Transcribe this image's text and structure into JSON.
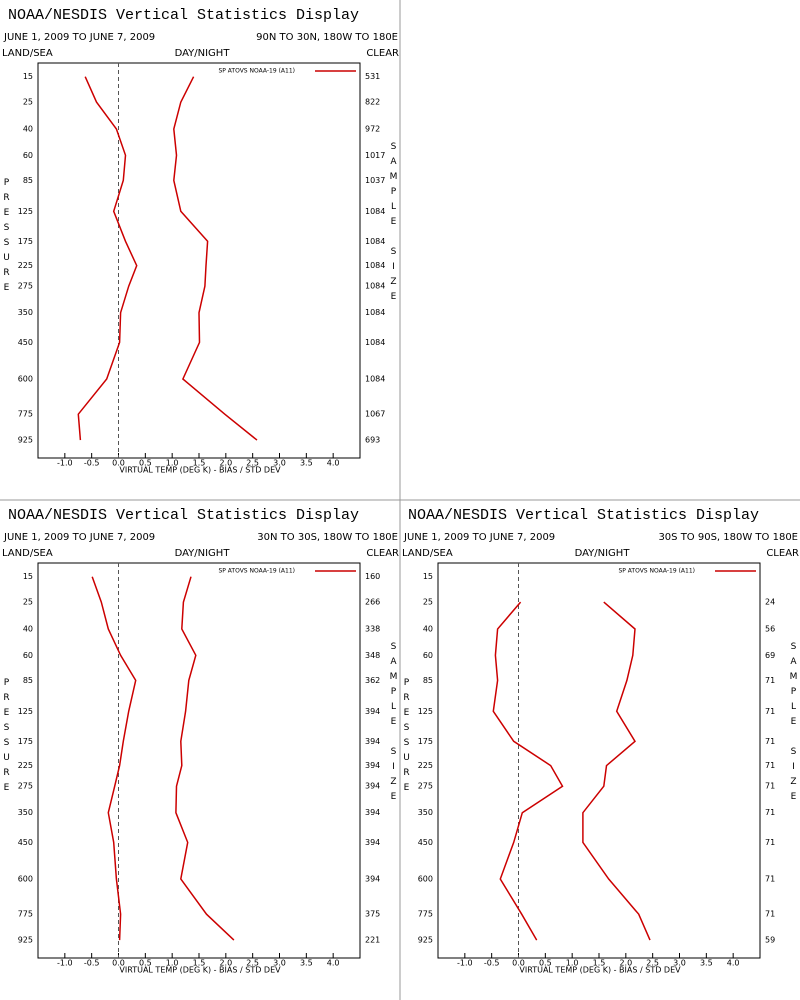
{
  "chart_data": [
    {
      "type": "line",
      "title": "NOAA/NESDIS Vertical Statistics Display",
      "date_range": "JUNE 1, 2009 TO JUNE 7, 2009",
      "region": "90N TO 30N, 180W TO 180E",
      "land_sea": "LAND/SEA",
      "day_night": "DAY/NIGHT",
      "cloud": "CLEAR",
      "ylabel": "PRESSURE",
      "y2label": "SAMPLE SIZE",
      "xlabel": "VIRTUAL TEMP (DEG K) - BIAS / STD DEV",
      "legend": "SP ATOVS NOAA-19 (A11)",
      "xlim": [
        -1.5,
        4.5
      ],
      "xticks": [
        {
          "value": -1,
          "label": "-1.0"
        },
        {
          "value": -0.5,
          "label": "-0.5"
        },
        {
          "value": 0,
          "label": "0.0"
        },
        {
          "value": 0.5,
          "label": "0.5"
        },
        {
          "value": 1,
          "label": "1.0"
        },
        {
          "value": 1.5,
          "label": "1.5"
        },
        {
          "value": 2,
          "label": "2.0"
        },
        {
          "value": 2.5,
          "label": "2.5"
        },
        {
          "value": 3,
          "label": "3.0"
        },
        {
          "value": 3.5,
          "label": "3.5"
        },
        {
          "value": 4,
          "label": "4.0"
        }
      ],
      "ylim": [
        11,
        1040
      ],
      "yscale": {
        "type": "power",
        "exponent": 0.286
      },
      "y": [
        15,
        25,
        40,
        60,
        85,
        125,
        175,
        225,
        275,
        350,
        450,
        600,
        775,
        925
      ],
      "sample_size": [
        531,
        822,
        972,
        1017,
        1037,
        1084,
        1084,
        1084,
        1084,
        1084,
        1084,
        1084,
        1067,
        693
      ],
      "series": [
        {
          "color": "#cc0000",
          "values": [
            -0.62,
            -0.41,
            -0.04,
            0.13,
            0.09,
            -0.09,
            0.13,
            0.34,
            0.19,
            0.04,
            0.02,
            -0.22,
            -0.75,
            -0.71
          ]
        },
        {
          "color": "#cc0000",
          "values": [
            1.4,
            1.16,
            1.03,
            1.08,
            1.03,
            1.16,
            1.66,
            1.63,
            1.61,
            1.5,
            1.51,
            1.2,
            1.98,
            2.58
          ]
        }
      ]
    },
    {
      "type": "line",
      "title": "NOAA/NESDIS Vertical Statistics Display",
      "date_range": "JUNE 1, 2009 TO JUNE 7, 2009",
      "region": "30N TO 30S, 180W TO 180E",
      "land_sea": "LAND/SEA",
      "day_night": "DAY/NIGHT",
      "cloud": "CLEAR",
      "ylabel": "PRESSURE",
      "y2label": "SAMPLE SIZE",
      "xlabel": "VIRTUAL TEMP (DEG K) - BIAS / STD DEV",
      "legend": "SP ATOVS NOAA-19 (A11)",
      "xlim": [
        -1.5,
        4.5
      ],
      "xticks": [
        {
          "value": -1,
          "label": "-1.0"
        },
        {
          "value": -0.5,
          "label": "-0.5"
        },
        {
          "value": 0,
          "label": "0.0"
        },
        {
          "value": 0.5,
          "label": "0.5"
        },
        {
          "value": 1,
          "label": "1.0"
        },
        {
          "value": 1.5,
          "label": "1.5"
        },
        {
          "value": 2,
          "label": "2.0"
        },
        {
          "value": 2.5,
          "label": "2.5"
        },
        {
          "value": 3,
          "label": "3.0"
        },
        {
          "value": 3.5,
          "label": "3.5"
        },
        {
          "value": 4,
          "label": "4.0"
        }
      ],
      "ylim": [
        11,
        1040
      ],
      "yscale": {
        "type": "power",
        "exponent": 0.286
      },
      "y": [
        15,
        25,
        40,
        60,
        85,
        125,
        175,
        225,
        275,
        350,
        450,
        600,
        775,
        925
      ],
      "sample_size": [
        160,
        266,
        338,
        348,
        362,
        394,
        394,
        394,
        394,
        394,
        394,
        394,
        375,
        221
      ],
      "series": [
        {
          "color": "#cc0000",
          "values": [
            -0.49,
            -0.32,
            -0.19,
            0.04,
            0.32,
            0.19,
            0.09,
            0.02,
            -0.07,
            -0.19,
            -0.09,
            -0.04,
            0.04,
            0.02
          ]
        },
        {
          "color": "#cc0000",
          "values": [
            1.35,
            1.21,
            1.18,
            1.44,
            1.31,
            1.25,
            1.16,
            1.18,
            1.08,
            1.07,
            1.29,
            1.16,
            1.64,
            2.15
          ]
        }
      ]
    },
    {
      "type": "line",
      "title": "NOAA/NESDIS Vertical Statistics Display",
      "date_range": "JUNE 1, 2009 TO JUNE 7, 2009",
      "region": "30S TO 90S, 180W TO 180E",
      "land_sea": "LAND/SEA",
      "day_night": "DAY/NIGHT",
      "cloud": "CLEAR",
      "ylabel": "PRESSURE",
      "y2label": "SAMPLE SIZE",
      "xlabel": "VIRTUAL TEMP (DEG K) - BIAS / STD DEV",
      "legend": "SP ATOVS NOAA-19 (A11)",
      "xlim": [
        -1.5,
        4.5
      ],
      "xticks": [
        {
          "value": -1,
          "label": "-1.0"
        },
        {
          "value": -0.5,
          "label": "-0.5"
        },
        {
          "value": 0,
          "label": "0.0"
        },
        {
          "value": 0.5,
          "label": "0.5"
        },
        {
          "value": 1,
          "label": "1.0"
        },
        {
          "value": 1.5,
          "label": "1.5"
        },
        {
          "value": 2,
          "label": "2.0"
        },
        {
          "value": 2.5,
          "label": "2.5"
        },
        {
          "value": 3,
          "label": "3.0"
        },
        {
          "value": 3.5,
          "label": "3.5"
        },
        {
          "value": 4,
          "label": "4.0"
        }
      ],
      "ylim": [
        11,
        1040
      ],
      "yscale": {
        "type": "power",
        "exponent": 0.286
      },
      "y": [
        15,
        25,
        40,
        60,
        85,
        125,
        175,
        225,
        275,
        350,
        450,
        600,
        775,
        925
      ],
      "sample_size": [
        null,
        24,
        56,
        69,
        71,
        71,
        71,
        71,
        71,
        71,
        71,
        71,
        71,
        59
      ],
      "series": [
        {
          "color": "#cc0000",
          "values": [
            null,
            0.04,
            -0.39,
            -0.43,
            -0.39,
            -0.47,
            -0.09,
            0.6,
            0.82,
            0.07,
            -0.09,
            -0.34,
            0.06,
            0.34
          ]
        },
        {
          "color": "#cc0000",
          "values": [
            null,
            1.59,
            2.17,
            2.13,
            2.02,
            1.83,
            2.17,
            1.64,
            1.59,
            1.2,
            1.2,
            1.68,
            2.24,
            2.45
          ]
        }
      ]
    }
  ]
}
